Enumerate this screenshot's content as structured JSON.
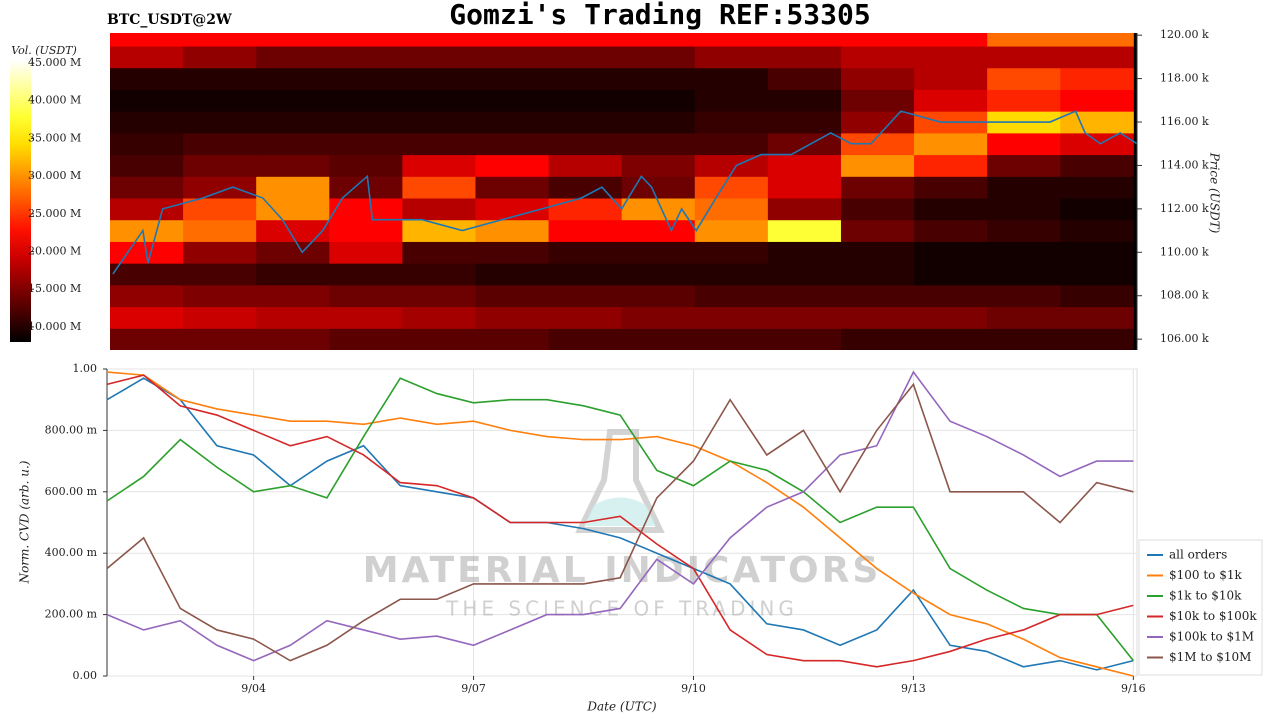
{
  "chart_data": [
    {
      "type": "heatmap",
      "title": "Gomzi's Trading REF:53305",
      "subtitle": "BTC_USDT@2W",
      "ylabel": "Price (USDT)",
      "colorbar_label": "Vol. (USDT)",
      "colormap": "hot",
      "xlim": [
        2,
        16.05
      ],
      "ylim": [
        105500,
        120100
      ],
      "yticks": [
        {
          "value": 106000,
          "label": "106.00 k"
        },
        {
          "value": 108000,
          "label": "108.00 k"
        },
        {
          "value": 110000,
          "label": "110.00 k"
        },
        {
          "value": 112000,
          "label": "112.00 k"
        },
        {
          "value": 114000,
          "label": "114.00 k"
        },
        {
          "value": 116000,
          "label": "116.00 k"
        },
        {
          "value": 118000,
          "label": "118.00 k"
        },
        {
          "value": 120000,
          "label": "120.00 k"
        }
      ],
      "clim": [
        8000000,
        45400000
      ],
      "cticks": [
        {
          "value": 10000000,
          "label": "10.000 M"
        },
        {
          "value": 15000000,
          "label": "15.000 M"
        },
        {
          "value": 20000000,
          "label": "20.000 M"
        },
        {
          "value": 25000000,
          "label": "25.000 M"
        },
        {
          "value": 30000000,
          "label": "30.000 M"
        },
        {
          "value": 35000000,
          "label": "35.000 M"
        },
        {
          "value": 40000000,
          "label": "40.000 M"
        },
        {
          "value": 45000000,
          "label": "45.000 M"
        }
      ],
      "xbins": [
        2,
        3,
        4,
        5,
        6,
        7,
        8,
        9,
        10,
        11,
        12,
        13,
        14,
        15,
        16
      ],
      "ybins": [
        105500,
        106500,
        107500,
        108500,
        109500,
        110500,
        111500,
        112500,
        113500,
        114500,
        115500,
        116500,
        117500,
        118500,
        119500,
        120500
      ],
      "z": [
        [
          14000000,
          14000000,
          14000000,
          13000000,
          13000000,
          13000000,
          12000000,
          12000000,
          12000000,
          12000000,
          11000000,
          11000000,
          11000000,
          11000000
        ],
        [
          20000000,
          19000000,
          18000000,
          18000000,
          17000000,
          16000000,
          16000000,
          15000000,
          15000000,
          15000000,
          15000000,
          15000000,
          14000000,
          14000000
        ],
        [
          16000000,
          15000000,
          15000000,
          14000000,
          14000000,
          13000000,
          13000000,
          13000000,
          12000000,
          12000000,
          12000000,
          12000000,
          12000000,
          11000000
        ],
        [
          12000000,
          12000000,
          11000000,
          11000000,
          11000000,
          10000000,
          10000000,
          10000000,
          10000000,
          10000000,
          10000000,
          9000000,
          9000000,
          9000000
        ],
        [
          22000000,
          16000000,
          14000000,
          20000000,
          12000000,
          12000000,
          11000000,
          11000000,
          11000000,
          10000000,
          10000000,
          9000000,
          9000000,
          9000000
        ],
        [
          30000000,
          28000000,
          20000000,
          22000000,
          32000000,
          30000000,
          22000000,
          22000000,
          30000000,
          38000000,
          14000000,
          12000000,
          11000000,
          10000000
        ],
        [
          18000000,
          26000000,
          30000000,
          22000000,
          18000000,
          20000000,
          24000000,
          30000000,
          28000000,
          16000000,
          12000000,
          10000000,
          10000000,
          9000000
        ],
        [
          14000000,
          16000000,
          30000000,
          14000000,
          26000000,
          14000000,
          12000000,
          14000000,
          26000000,
          20000000,
          14000000,
          12000000,
          10000000,
          10000000
        ],
        [
          12000000,
          14000000,
          14000000,
          13000000,
          20000000,
          22000000,
          18000000,
          15000000,
          18000000,
          20000000,
          30000000,
          24000000,
          14000000,
          12000000
        ],
        [
          11000000,
          12000000,
          12000000,
          12000000,
          12000000,
          12000000,
          12000000,
          12000000,
          12000000,
          14000000,
          26000000,
          30000000,
          22000000,
          20000000
        ],
        [
          10000000,
          10000000,
          10000000,
          10000000,
          10000000,
          10000000,
          10000000,
          10000000,
          11000000,
          11000000,
          16000000,
          26000000,
          34000000,
          32000000
        ],
        [
          9000000,
          9000000,
          9000000,
          9000000,
          9000000,
          9000000,
          9000000,
          9000000,
          10000000,
          10000000,
          14000000,
          20000000,
          24000000,
          22000000
        ],
        [
          10000000,
          10000000,
          10000000,
          10000000,
          10000000,
          10000000,
          10000000,
          10000000,
          10000000,
          12000000,
          16000000,
          18000000,
          26000000,
          24000000
        ],
        [
          18000000,
          16000000,
          14000000,
          14000000,
          14000000,
          14000000,
          14000000,
          14000000,
          16000000,
          16000000,
          18000000,
          18000000,
          18000000,
          18000000
        ],
        [
          22000000,
          22000000,
          22000000,
          22000000,
          22000000,
          22000000,
          22000000,
          22000000,
          22000000,
          22000000,
          22000000,
          22000000,
          28000000,
          28000000
        ]
      ],
      "price": {
        "color": "#1f77b4",
        "x": [
          2.04,
          2.45,
          2.52,
          2.72,
          3.27,
          3.68,
          4.09,
          4.36,
          4.63,
          4.91,
          5.18,
          5.52,
          5.59,
          6.27,
          6.82,
          7.36,
          7.91,
          8.45,
          8.73,
          9.0,
          9.27,
          9.41,
          9.68,
          9.82,
          10.02,
          10.29,
          10.57,
          10.91,
          11.32,
          11.86,
          12.14,
          12.41,
          12.82,
          13.36,
          13.91,
          14.46,
          14.86,
          15.21,
          15.34,
          15.55,
          15.82,
          16.05
        ],
        "values": [
          109000,
          111000,
          109500,
          112000,
          112500,
          113000,
          112500,
          111500,
          110000,
          111000,
          112500,
          113500,
          111500,
          111500,
          111000,
          111500,
          112000,
          112500,
          113000,
          112000,
          113500,
          113000,
          111000,
          112000,
          111000,
          112500,
          114000,
          114500,
          114500,
          115500,
          115000,
          115000,
          116500,
          116000,
          116000,
          116000,
          116000,
          116500,
          115500,
          115000,
          115500,
          115000
        ]
      }
    },
    {
      "type": "line",
      "xlabel": "Date (UTC)",
      "ylabel": "Norm. CVD (arb. u.)",
      "annotations": [
        "MATERIAL INDICATORS",
        "THE SCIENCE OF TRADING"
      ],
      "grid": true,
      "legend": "right",
      "xlim": [
        2,
        16.05
      ],
      "xticks": [
        {
          "value": 4,
          "label": "9/04"
        },
        {
          "value": 7,
          "label": "9/07"
        },
        {
          "value": 10,
          "label": "9/10"
        },
        {
          "value": 13,
          "label": "9/13"
        },
        {
          "value": 16,
          "label": "9/16"
        }
      ],
      "ylim": [
        0,
        1
      ],
      "yticks": [
        {
          "value": 0,
          "label": "0.00"
        },
        {
          "value": 0.2,
          "label": "200.00 m"
        },
        {
          "value": 0.4,
          "label": "400.00 m"
        },
        {
          "value": 0.6,
          "label": "600.00 m"
        },
        {
          "value": 0.8,
          "label": "800.00 m"
        },
        {
          "value": 1,
          "label": "1.00"
        }
      ],
      "x": [
        2,
        2.5,
        3,
        3.5,
        4,
        4.5,
        5,
        5.5,
        6,
        6.5,
        7,
        7.5,
        8,
        8.5,
        9,
        9.5,
        10,
        10.5,
        11,
        11.5,
        12,
        12.5,
        13,
        13.5,
        14,
        14.5,
        15,
        15.5,
        16
      ],
      "series": [
        {
          "name": "all orders",
          "color": "#1f77b4",
          "values": [
            0.9,
            0.97,
            0.9,
            0.75,
            0.72,
            0.62,
            0.7,
            0.75,
            0.62,
            0.6,
            0.58,
            0.5,
            0.5,
            0.48,
            0.45,
            0.4,
            0.35,
            0.3,
            0.17,
            0.15,
            0.1,
            0.15,
            0.28,
            0.1,
            0.08,
            0.03,
            0.05,
            0.02,
            0.05
          ]
        },
        {
          "name": "$100 to $1k",
          "color": "#ff7f0e",
          "values": [
            0.99,
            0.98,
            0.9,
            0.87,
            0.85,
            0.83,
            0.83,
            0.82,
            0.84,
            0.82,
            0.83,
            0.8,
            0.78,
            0.77,
            0.77,
            0.78,
            0.75,
            0.7,
            0.63,
            0.55,
            0.45,
            0.35,
            0.27,
            0.2,
            0.17,
            0.12,
            0.06,
            0.03,
            0
          ]
        },
        {
          "name": "$1k to $10k",
          "color": "#2ca02c",
          "values": [
            0.57,
            0.65,
            0.77,
            0.68,
            0.6,
            0.62,
            0.58,
            0.78,
            0.97,
            0.92,
            0.89,
            0.9,
            0.9,
            0.88,
            0.85,
            0.67,
            0.62,
            0.7,
            0.67,
            0.6,
            0.5,
            0.55,
            0.55,
            0.35,
            0.28,
            0.22,
            0.2,
            0.2,
            0.05
          ]
        },
        {
          "name": "$10k to $100k",
          "color": "#d62728",
          "values": [
            0.95,
            0.98,
            0.88,
            0.85,
            0.8,
            0.75,
            0.78,
            0.72,
            0.63,
            0.62,
            0.58,
            0.5,
            0.5,
            0.5,
            0.52,
            0.43,
            0.35,
            0.15,
            0.07,
            0.05,
            0.05,
            0.03,
            0.05,
            0.08,
            0.12,
            0.15,
            0.2,
            0.2,
            0.23
          ]
        },
        {
          "name": "$100k to $1M",
          "color": "#9467bd",
          "values": [
            0.2,
            0.15,
            0.18,
            0.1,
            0.05,
            0.1,
            0.18,
            0.15,
            0.12,
            0.13,
            0.1,
            0.15,
            0.2,
            0.2,
            0.22,
            0.38,
            0.3,
            0.45,
            0.55,
            0.6,
            0.72,
            0.75,
            0.99,
            0.83,
            0.78,
            0.72,
            0.65,
            0.7,
            0.7
          ]
        },
        {
          "name": "$1M to $10M",
          "color": "#8c564b",
          "values": [
            0.35,
            0.45,
            0.22,
            0.15,
            0.12,
            0.05,
            0.1,
            0.18,
            0.25,
            0.25,
            0.3,
            0.3,
            0.3,
            0.3,
            0.32,
            0.58,
            0.7,
            0.9,
            0.72,
            0.8,
            0.6,
            0.8,
            0.95,
            0.6,
            0.6,
            0.6,
            0.5,
            0.63,
            0.6
          ]
        }
      ]
    }
  ]
}
